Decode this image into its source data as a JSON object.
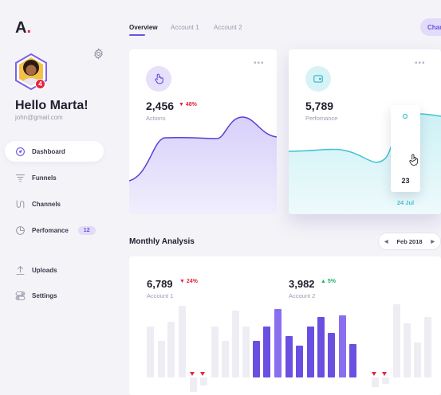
{
  "logo": {
    "text": "A",
    "dot": "."
  },
  "user": {
    "greeting": "Hello Marta!",
    "email": "john@gmail.com",
    "notification_count": "4"
  },
  "nav": {
    "items": [
      {
        "label": "Dashboard",
        "icon": "gauge-icon",
        "active": true
      },
      {
        "label": "Funnels",
        "icon": "funnel-icon"
      },
      {
        "label": "Channels",
        "icon": "channels-icon"
      },
      {
        "label": "Perfomance",
        "icon": "pie-chart-icon",
        "badge": "12"
      },
      {
        "label": "Uploads",
        "icon": "upload-icon"
      },
      {
        "label": "Settings",
        "icon": "toggles-icon"
      }
    ]
  },
  "tabs": [
    {
      "label": "Overview",
      "active": true
    },
    {
      "label": "Account 1"
    },
    {
      "label": "Account 2"
    }
  ],
  "change_button": {
    "label": "Change"
  },
  "cards": [
    {
      "icon": "hand-pointer-icon",
      "value": "2,456",
      "delta": "48%",
      "delta_dir": "down",
      "label": "Actions",
      "menu": "•••"
    },
    {
      "icon": "wallet-icon",
      "value": "5,789",
      "label": "Perfomance",
      "menu": "•••",
      "tooltip_value": "23",
      "tooltip_date": "24 Jul"
    }
  ],
  "monthly": {
    "title": "Monthly Analysis",
    "date_picker": {
      "label": "Feb 2018",
      "prev": "◀",
      "next": "▶"
    },
    "accounts": [
      {
        "value": "6,789",
        "delta": "24%",
        "delta_dir": "down",
        "label": "Account 1"
      },
      {
        "value": "3,982",
        "delta": "5%",
        "delta_dir": "up",
        "label": "Account 2"
      }
    ]
  },
  "colors": {
    "accent": "#6b52e0",
    "red": "#e8233f",
    "green": "#23b26d",
    "cyan": "#3bc4d4"
  }
}
